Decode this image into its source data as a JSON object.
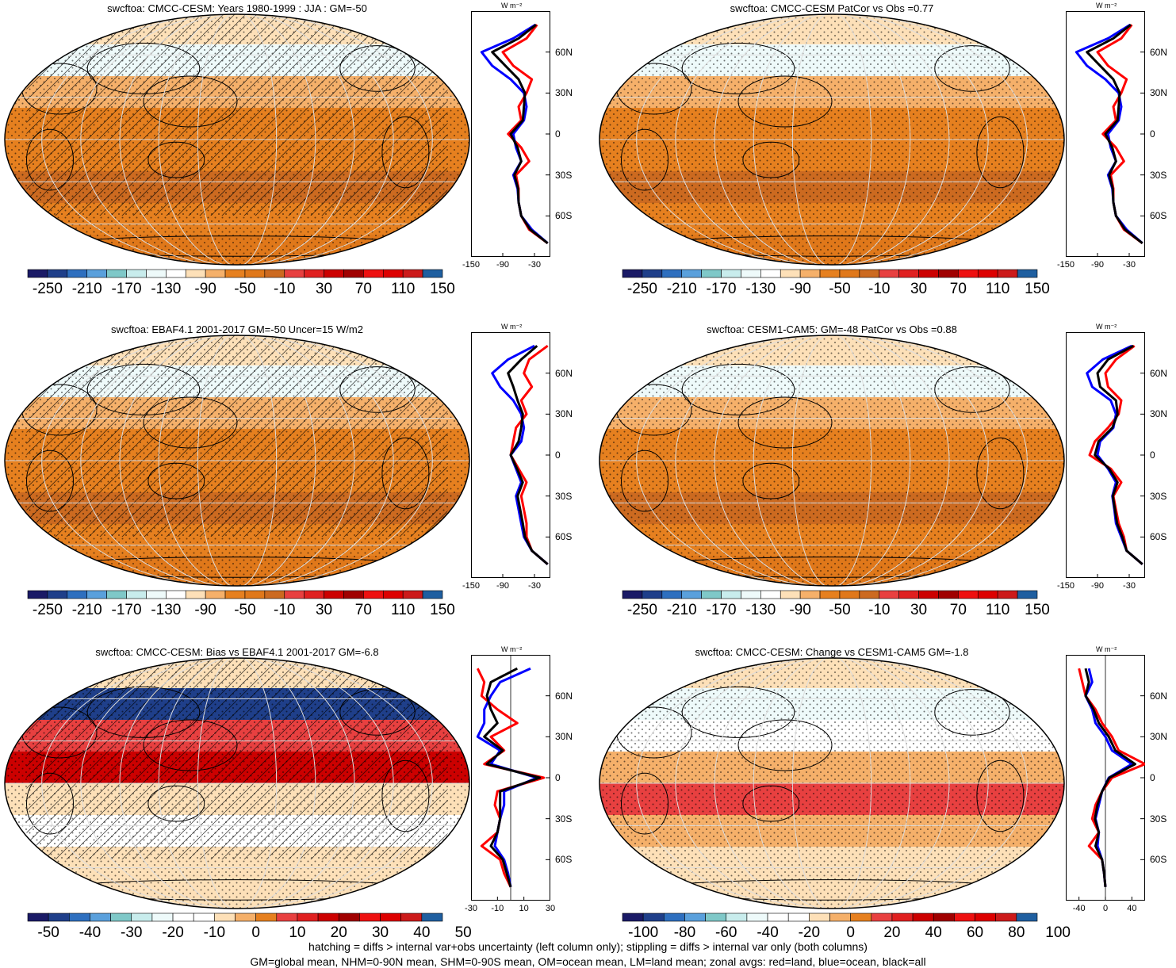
{
  "footer": {
    "line1": "hatching = diffs > internal var+obs uncertainty (left column only); stippling = diffs > internal var only (both columns)",
    "line2": "GM=global mean, NHM=0-90N mean, SHM=0-90S mean, OM=ocean mean, LM=land mean; zonal avgs: red=land, blue=ocean, black=all"
  },
  "zonal_unit": "W m⁻²",
  "lat_labels": [
    "60N",
    "30N",
    "0",
    "30S",
    "60S"
  ],
  "colors": {
    "land": "#ff0000",
    "ocean": "#0000ff",
    "all": "#000000"
  },
  "colormaps": {
    "absolute": [
      "#1a1a66",
      "#1f3f8a",
      "#2e6fbf",
      "#5aa0dc",
      "#7fc8c8",
      "#c8ecec",
      "#eefafa",
      "#ffffff",
      "#fde0b8",
      "#f5b06a",
      "#e6801f",
      "#e0781a",
      "#cc6a20",
      "#e84040",
      "#e02020",
      "#cc0000",
      "#a00000",
      "#ee1010",
      "#dd0000",
      "#cc1a1a",
      "#1f5fa0"
    ],
    "bias": [
      "#1a1a66",
      "#1f3f8a",
      "#2e6fbf",
      "#5aa0dc",
      "#7fc8c8",
      "#c8ecec",
      "#eefafa",
      "#ffffff",
      "#ffffff",
      "#fde0b8",
      "#f5b06a",
      "#e6801f",
      "#e84040",
      "#e02020",
      "#cc0000",
      "#a00000",
      "#ee1010",
      "#dd0000",
      "#cc1a1a",
      "#1f5fa0"
    ]
  },
  "chart_data": [
    {
      "type": "heatmap",
      "title": "swcftoa: CMCC-CESM: Years 1980-1999 : JJA : GM=-50",
      "colorbar_labels": [
        "-250",
        "-210",
        "-170",
        "-130",
        "-90",
        "-50",
        "-10",
        "30",
        "70",
        "110",
        "150"
      ],
      "hatching": true,
      "zonal": {
        "xticks": [
          "-150",
          "-90",
          "-30"
        ],
        "xlim": [
          -150,
          0
        ],
        "lat": [
          80,
          70,
          60,
          50,
          40,
          30,
          20,
          10,
          0,
          -10,
          -20,
          -30,
          -40,
          -50,
          -60,
          -70,
          -80
        ],
        "land": [
          -25,
          -45,
          -90,
          -70,
          -35,
          -45,
          -60,
          -55,
          -80,
          -55,
          -40,
          -65,
          -60,
          -60,
          -55,
          -40,
          -5
        ],
        "ocean": [
          -28,
          -70,
          -130,
          -110,
          -75,
          -50,
          -45,
          -50,
          -70,
          -65,
          -55,
          -70,
          -62,
          -60,
          -55,
          -35,
          -5
        ],
        "all": [
          -27,
          -60,
          -110,
          -85,
          -60,
          -48,
          -50,
          -52,
          -75,
          -62,
          -55,
          -68,
          -61,
          -60,
          -55,
          -38,
          -5
        ]
      }
    },
    {
      "type": "heatmap",
      "title": "swcftoa: CMCC-CESM PatCor vs Obs =0.77",
      "colorbar_labels": [
        "-250",
        "-210",
        "-170",
        "-130",
        "-90",
        "-50",
        "-10",
        "30",
        "70",
        "110",
        "150"
      ],
      "hatching": false,
      "zonal": {
        "xticks": [
          "-150",
          "-90",
          "-30"
        ],
        "xlim": [
          -150,
          0
        ],
        "lat": [
          80,
          70,
          60,
          50,
          40,
          30,
          20,
          10,
          0,
          -10,
          -20,
          -30,
          -40,
          -50,
          -60,
          -70,
          -80
        ],
        "land": [
          -25,
          -45,
          -90,
          -70,
          -35,
          -45,
          -60,
          -55,
          -80,
          -55,
          -40,
          -65,
          -60,
          -60,
          -55,
          -40,
          -5
        ],
        "ocean": [
          -28,
          -70,
          -130,
          -110,
          -75,
          -50,
          -45,
          -50,
          -70,
          -65,
          -55,
          -70,
          -62,
          -60,
          -55,
          -35,
          -5
        ],
        "all": [
          -27,
          -60,
          -110,
          -85,
          -60,
          -48,
          -50,
          -52,
          -75,
          -62,
          -55,
          -68,
          -61,
          -60,
          -55,
          -38,
          -5
        ]
      }
    },
    {
      "type": "heatmap",
      "title": "swcftoa: EBAF4.1 2001-2017 GM=-50 Uncer=15 W/m2",
      "colorbar_labels": [
        "-250",
        "-210",
        "-170",
        "-130",
        "-90",
        "-50",
        "-10",
        "30",
        "70",
        "110",
        "150"
      ],
      "hatching": true,
      "zonal": {
        "xticks": [
          "-150",
          "-90",
          "-30"
        ],
        "xlim": [
          -150,
          0
        ],
        "lat": [
          80,
          70,
          60,
          50,
          40,
          30,
          20,
          10,
          0,
          -10,
          -20,
          -30,
          -40,
          -50,
          -60,
          -70,
          -80
        ],
        "land": [
          -5,
          -40,
          -50,
          -35,
          -55,
          -45,
          -65,
          -70,
          -75,
          -60,
          -45,
          -55,
          -50,
          -45,
          -45,
          -35,
          -5
        ],
        "ocean": [
          -30,
          -80,
          -110,
          -95,
          -70,
          -55,
          -50,
          -55,
          -75,
          -65,
          -55,
          -65,
          -60,
          -55,
          -50,
          -35,
          -5
        ],
        "all": [
          -25,
          -55,
          -80,
          -70,
          -62,
          -52,
          -55,
          -60,
          -75,
          -63,
          -52,
          -62,
          -57,
          -52,
          -48,
          -35,
          -5
        ]
      }
    },
    {
      "type": "heatmap",
      "title": "swcftoa: CESM1-CAM5: GM=-48 PatCor vs Obs =0.88",
      "colorbar_labels": [
        "-250",
        "-210",
        "-170",
        "-130",
        "-90",
        "-50",
        "-10",
        "30",
        "70",
        "110",
        "150"
      ],
      "hatching": false,
      "zonal": {
        "xticks": [
          "-150",
          "-90",
          "-30"
        ],
        "xlim": [
          -150,
          0
        ],
        "lat": [
          80,
          70,
          60,
          50,
          40,
          30,
          20,
          10,
          0,
          -10,
          -20,
          -30,
          -40,
          -50,
          -60,
          -70,
          -80
        ],
        "land": [
          -20,
          -55,
          -75,
          -70,
          -45,
          -50,
          -70,
          -95,
          -105,
          -65,
          -45,
          -60,
          -55,
          -50,
          -40,
          -35,
          -5
        ],
        "ocean": [
          -25,
          -80,
          -110,
          -100,
          -65,
          -55,
          -60,
          -85,
          -90,
          -70,
          -55,
          -62,
          -58,
          -55,
          -45,
          -35,
          -5
        ],
        "all": [
          -22,
          -70,
          -90,
          -85,
          -55,
          -52,
          -62,
          -88,
          -95,
          -68,
          -52,
          -61,
          -57,
          -53,
          -43,
          -35,
          -5
        ]
      }
    },
    {
      "type": "heatmap",
      "title": "swcftoa: CMCC-CESM: Bias vs EBAF4.1 2001-2017 GM=-6.8",
      "colorbar_labels": [
        "-50",
        "-40",
        "-30",
        "-20",
        "-10",
        "0",
        "10",
        "20",
        "30",
        "40",
        "50"
      ],
      "hatching": true,
      "zonal": {
        "xticks": [
          "-30",
          "-10",
          "10",
          "30"
        ],
        "xlim": [
          -30,
          30
        ],
        "lat": [
          80,
          70,
          60,
          50,
          40,
          30,
          20,
          10,
          0,
          -10,
          -20,
          -30,
          -40,
          -50,
          -60,
          -70,
          -80
        ],
        "land": [
          -25,
          -20,
          -22,
          -10,
          5,
          -15,
          -5,
          -20,
          25,
          -10,
          -12,
          -8,
          -10,
          -22,
          -8,
          -5,
          0
        ],
        "ocean": [
          15,
          -8,
          -15,
          -20,
          -20,
          -25,
          -8,
          -15,
          20,
          -5,
          -5,
          -8,
          -10,
          -12,
          -5,
          -2,
          0
        ],
        "all": [
          5,
          -15,
          -18,
          -15,
          -10,
          -20,
          -6,
          -18,
          22,
          -8,
          -8,
          -8,
          -10,
          -15,
          -6,
          -3,
          0
        ]
      }
    },
    {
      "type": "heatmap",
      "title": "swcftoa: CMCC-CESM: Change vs CESM1-CAM5 GM=-1.8",
      "colorbar_labels": [
        "-100",
        "-80",
        "-60",
        "-40",
        "-20",
        "0",
        "20",
        "40",
        "60",
        "80",
        "100"
      ],
      "hatching": false,
      "zonal": {
        "xticks": [
          "-40",
          "0",
          "40"
        ],
        "xlim": [
          -60,
          60
        ],
        "lat": [
          80,
          70,
          60,
          50,
          40,
          30,
          20,
          10,
          0,
          -10,
          -20,
          -30,
          -40,
          -50,
          -60,
          -70,
          -80
        ],
        "land": [
          -40,
          -35,
          -30,
          -15,
          -5,
          10,
          20,
          60,
          10,
          -5,
          -15,
          -20,
          -10,
          -25,
          -5,
          -2,
          0
        ],
        "ocean": [
          -25,
          -20,
          -30,
          -20,
          -15,
          0,
          10,
          40,
          5,
          -5,
          -10,
          -15,
          -10,
          -12,
          -5,
          -2,
          0
        ],
        "all": [
          -30,
          -25,
          -30,
          -18,
          -10,
          5,
          15,
          45,
          6,
          -5,
          -12,
          -16,
          -10,
          -15,
          -5,
          -2,
          0
        ]
      }
    }
  ]
}
